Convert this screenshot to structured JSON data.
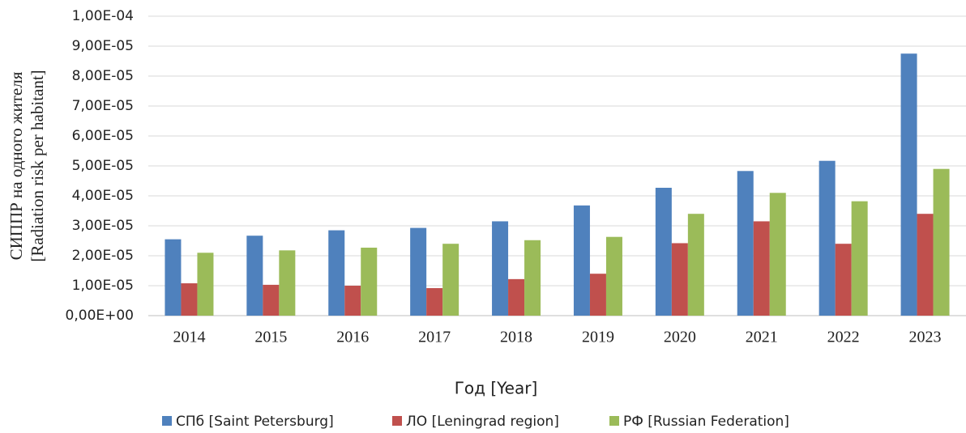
{
  "chart_data": {
    "type": "bar",
    "y_label": [
      "СИППР на одного жителя",
      "[Radiation risk per habitant]"
    ],
    "x_label": "Год [Year]",
    "categories": [
      "2014",
      "2015",
      "2016",
      "2017",
      "2018",
      "2019",
      "2020",
      "2021",
      "2022",
      "2023"
    ],
    "series": [
      {
        "name": "СПб [Saint Petersburg]",
        "color": "#4f81bd",
        "values": [
          2.55e-05,
          2.67e-05,
          2.85e-05,
          2.93e-05,
          3.15e-05,
          3.68e-05,
          4.27e-05,
          4.83e-05,
          5.17e-05,
          8.75e-05
        ]
      },
      {
        "name": "ЛО [Leningrad region]",
        "color": "#c0504d",
        "values": [
          1.08e-05,
          1.03e-05,
          1e-05,
          9.2e-06,
          1.22e-05,
          1.4e-05,
          2.42e-05,
          3.15e-05,
          2.4e-05,
          3.4e-05
        ]
      },
      {
        "name": "РФ [Russian Federation]",
        "color": "#9bbb59",
        "values": [
          2.1e-05,
          2.18e-05,
          2.27e-05,
          2.4e-05,
          2.52e-05,
          2.63e-05,
          3.4e-05,
          4.1e-05,
          3.82e-05,
          4.9e-05
        ]
      }
    ],
    "ylim": [
      0,
      0.0001
    ],
    "yticks": [
      {
        "value": 0,
        "label": "0,00E+00"
      },
      {
        "value": 1e-05,
        "label": "1,00E-05"
      },
      {
        "value": 2e-05,
        "label": "2,00E-05"
      },
      {
        "value": 3e-05,
        "label": "3,00E-05"
      },
      {
        "value": 4e-05,
        "label": "4,00E-05"
      },
      {
        "value": 5e-05,
        "label": "5,00E-05"
      },
      {
        "value": 6e-05,
        "label": "6,00E-05"
      },
      {
        "value": 7e-05,
        "label": "7,00E-05"
      },
      {
        "value": 8e-05,
        "label": "8,00E-05"
      },
      {
        "value": 9e-05,
        "label": "9,00E-05"
      },
      {
        "value": 0.0001,
        "label": "1,00E-04"
      }
    ],
    "grid": true,
    "legend": "bottom"
  }
}
